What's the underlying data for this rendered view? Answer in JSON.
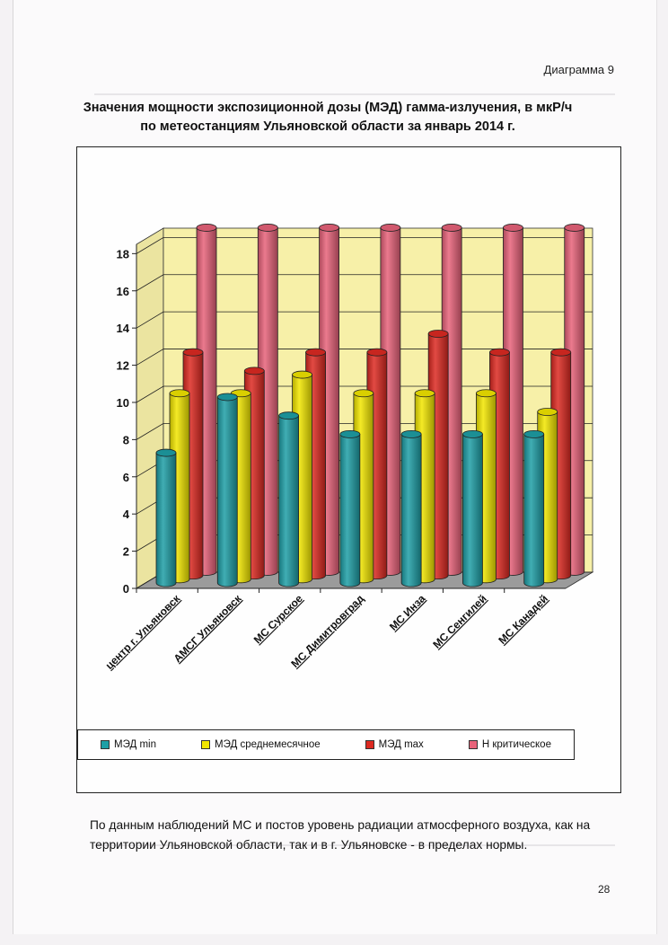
{
  "diagram_label": "Диаграмма 9",
  "title_line1": "Значения мощности экспозиционной дозы (МЭД) гамма-излучения, в мкР/ч",
  "title_line2": "по метеостанциям Ульяновской области за январь 2014 г.",
  "chart_data": {
    "type": "bar",
    "categories": [
      "центр г. Ульяновск",
      "АМСГ Ульяновск",
      "МС Сурское",
      "МС Димитровград",
      "МС Инза",
      "МС Сенгилей",
      "МС Канадей"
    ],
    "series": [
      {
        "name": "МЭД min",
        "values": [
          7,
          10,
          9,
          8,
          8,
          8,
          8
        ],
        "color": "#1e9fa6"
      },
      {
        "name": "МЭД среднемесячное",
        "values": [
          10,
          10,
          11,
          10,
          10,
          10,
          9
        ],
        "color": "#f2e600"
      },
      {
        "name": "МЭД max",
        "values": [
          12,
          11,
          12,
          12,
          13,
          12,
          12
        ],
        "color": "#dd2a22"
      },
      {
        "name": "Н критическое",
        "values": [
          18.5,
          18.5,
          18.5,
          18.5,
          18.5,
          18.5,
          18.5
        ],
        "color": "#e8637a"
      }
    ],
    "yticks": [
      "0",
      "2",
      "4",
      "6",
      "8",
      "10",
      "12",
      "14",
      "16",
      "18"
    ],
    "ylim": [
      0,
      18.5
    ],
    "wall_color": "#f7f0a8",
    "floor_color": "#9b9b9b",
    "legend_position": "bottom"
  },
  "body_text": "По данным наблюдений МС и постов уровень радиации атмосферного воздуха, как на территории Ульяновской области, так и в г. Ульяновске - в пределах нормы.",
  "page_number": "28"
}
